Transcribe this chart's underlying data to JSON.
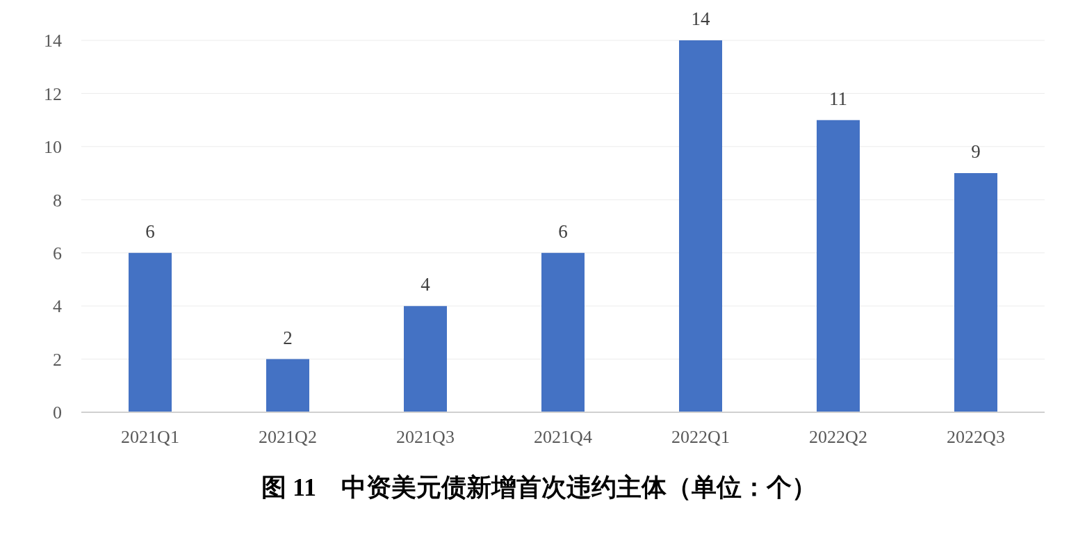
{
  "chart_data": {
    "type": "bar",
    "title": "图 11　中资美元债新增首次违约主体（单位：个）",
    "categories": [
      "2021Q1",
      "2021Q2",
      "2021Q3",
      "2021Q4",
      "2022Q1",
      "2022Q2",
      "2022Q3"
    ],
    "values": [
      6,
      2,
      4,
      6,
      14,
      11,
      9
    ],
    "color": "#4472c4",
    "ylim": [
      0,
      14
    ],
    "yticks": [
      0,
      2,
      4,
      6,
      8,
      10,
      12,
      14
    ],
    "grid": "y",
    "data_labels": true
  }
}
